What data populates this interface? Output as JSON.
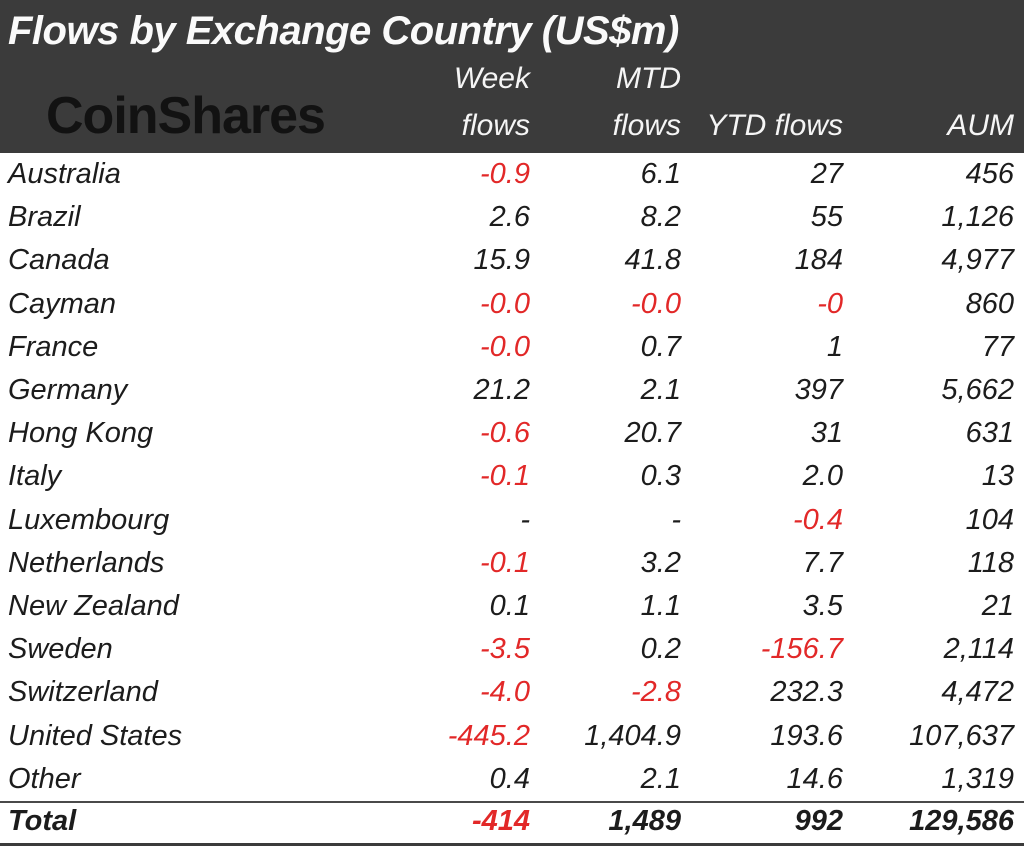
{
  "header": {
    "title": "Flows by Exchange Country (US$m)",
    "logo": "CoinShares",
    "columns": [
      {
        "line1": "Week",
        "line2": "flows"
      },
      {
        "line1": "MTD",
        "line2": "flows"
      },
      {
        "line1": "",
        "line2": "YTD flows"
      },
      {
        "line1": "",
        "line2": "AUM"
      }
    ]
  },
  "colors": {
    "header_background": "#3b3b3b",
    "title_text": "#fafafa",
    "logo_text": "#121212",
    "body_text": "#1c1c1c",
    "negative_value": "#e22828"
  },
  "table": {
    "rows": [
      {
        "country": "Australia",
        "values": [
          "-0.9",
          "6.1",
          "27",
          "456"
        ]
      },
      {
        "country": "Brazil",
        "values": [
          "2.6",
          "8.2",
          "55",
          "1,126"
        ]
      },
      {
        "country": "Canada",
        "values": [
          "15.9",
          "41.8",
          "184",
          "4,977"
        ]
      },
      {
        "country": "Cayman",
        "values": [
          "-0.0",
          "-0.0",
          "-0",
          "860"
        ]
      },
      {
        "country": "France",
        "values": [
          "-0.0",
          "0.7",
          "1",
          "77"
        ]
      },
      {
        "country": "Germany",
        "values": [
          "21.2",
          "2.1",
          "397",
          "5,662"
        ]
      },
      {
        "country": "Hong Kong",
        "values": [
          "-0.6",
          "20.7",
          "31",
          "631"
        ]
      },
      {
        "country": "Italy",
        "values": [
          "-0.1",
          "0.3",
          "2.0",
          "13"
        ]
      },
      {
        "country": "Luxembourg",
        "values": [
          "-",
          "-",
          "-0.4",
          "104"
        ]
      },
      {
        "country": "Netherlands",
        "values": [
          "-0.1",
          "3.2",
          "7.7",
          "118"
        ]
      },
      {
        "country": "New Zealand",
        "values": [
          "0.1",
          "1.1",
          "3.5",
          "21"
        ]
      },
      {
        "country": "Sweden",
        "values": [
          "-3.5",
          "0.2",
          "-156.7",
          "2,114"
        ]
      },
      {
        "country": "Switzerland",
        "values": [
          "-4.0",
          "-2.8",
          "232.3",
          "4,472"
        ]
      },
      {
        "country": "United States",
        "values": [
          "-445.2",
          "1,404.9",
          "193.6",
          "107,637"
        ]
      },
      {
        "country": "Other",
        "values": [
          "0.4",
          "2.1",
          "14.6",
          "1,319"
        ]
      }
    ],
    "total": {
      "country": "Total",
      "values": [
        "-414",
        "1,489",
        "992",
        "129,586"
      ]
    }
  },
  "chart_data": {
    "type": "table",
    "title": "Flows by Exchange Country (US$m)",
    "columns": [
      "Country",
      "Week flows",
      "MTD flows",
      "YTD flows",
      "AUM"
    ],
    "rows": [
      [
        "Australia",
        -0.9,
        6.1,
        27,
        456
      ],
      [
        "Brazil",
        2.6,
        8.2,
        55,
        1126
      ],
      [
        "Canada",
        15.9,
        41.8,
        184,
        4977
      ],
      [
        "Cayman",
        -0.0,
        -0.0,
        0,
        860
      ],
      [
        "France",
        -0.0,
        0.7,
        1,
        77
      ],
      [
        "Germany",
        21.2,
        2.1,
        397,
        5662
      ],
      [
        "Hong Kong",
        -0.6,
        20.7,
        31,
        631
      ],
      [
        "Italy",
        -0.1,
        0.3,
        2.0,
        13
      ],
      [
        "Luxembourg",
        null,
        null,
        -0.4,
        104
      ],
      [
        "Netherlands",
        -0.1,
        3.2,
        7.7,
        118
      ],
      [
        "New Zealand",
        0.1,
        1.1,
        3.5,
        21
      ],
      [
        "Sweden",
        -3.5,
        0.2,
        -156.7,
        2114
      ],
      [
        "Switzerland",
        -4.0,
        -2.8,
        232.3,
        4472
      ],
      [
        "United States",
        -445.2,
        1404.9,
        193.6,
        107637
      ],
      [
        "Other",
        0.4,
        2.1,
        14.6,
        1319
      ],
      [
        "Total",
        -414,
        1489,
        992,
        129586
      ]
    ],
    "notes": "Negative flow values rendered in red; dash means no flow reported"
  }
}
